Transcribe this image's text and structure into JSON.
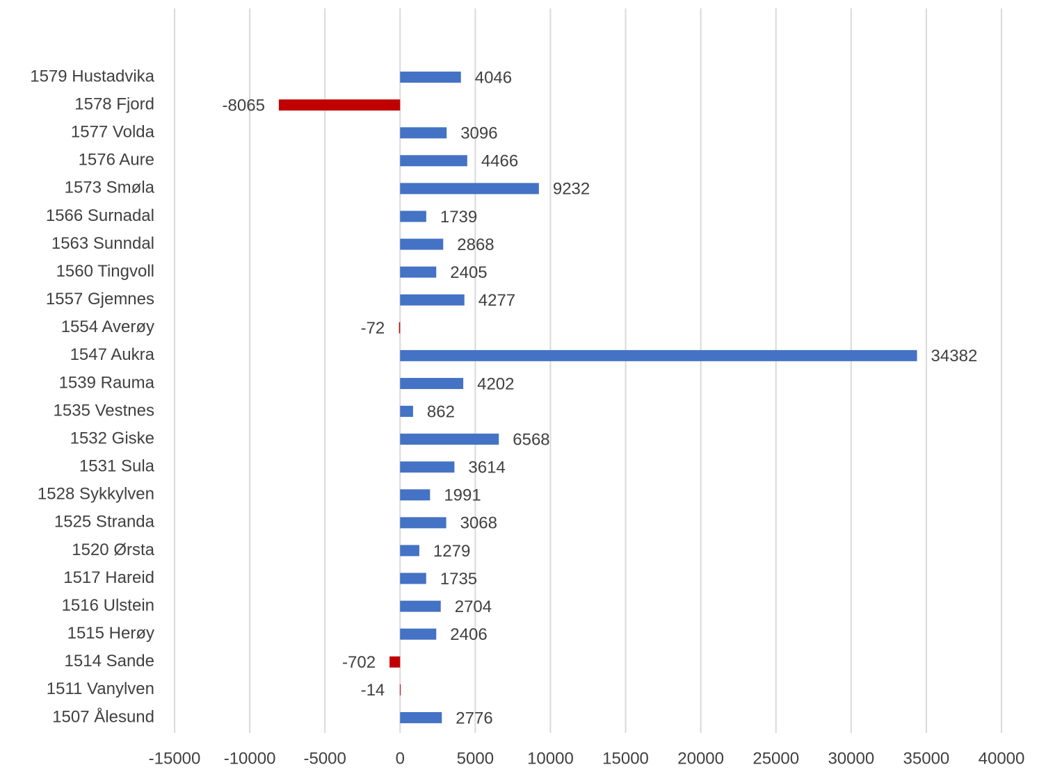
{
  "chart_data": {
    "type": "bar",
    "orientation": "horizontal",
    "categories": [
      "1579 Hustadvika",
      "1578 Fjord",
      "1577 Volda",
      "1576 Aure",
      "1573 Smøla",
      "1566 Surnadal",
      "1563 Sunndal",
      "1560 Tingvoll",
      "1557 Gjemnes",
      "1554 Averøy",
      "1547 Aukra",
      "1539 Rauma",
      "1535 Vestnes",
      "1532 Giske",
      "1531 Sula",
      "1528 Sykkylven",
      "1525 Stranda",
      "1520 Ørsta",
      "1517 Hareid",
      "1516 Ulstein",
      "1515 Herøy",
      "1514 Sande",
      "1511 Vanylven",
      "1507 Ålesund"
    ],
    "values": [
      4046,
      -8065,
      3096,
      4466,
      9232,
      1739,
      2868,
      2405,
      4277,
      -72,
      34382,
      4202,
      862,
      6568,
      3614,
      1991,
      3068,
      1279,
      1735,
      2704,
      2406,
      -702,
      -14,
      2776
    ],
    "color": "#4472c4",
    "negative_color": "#c00000",
    "xlim": [
      -15000,
      40000
    ],
    "xticks": [
      -15000,
      -10000,
      -5000,
      0,
      5000,
      10000,
      15000,
      20000,
      25000,
      30000,
      35000,
      40000
    ],
    "grid": true
  }
}
